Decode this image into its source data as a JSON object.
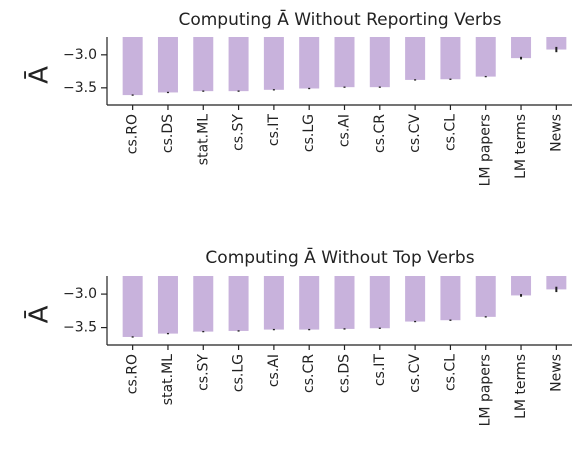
{
  "chart_data": [
    {
      "type": "bar",
      "title": "Computing Ā Without Reporting Verbs",
      "y_label": "Ā",
      "categories": [
        "cs.RO",
        "cs.DS",
        "stat.ML",
        "cs.SY",
        "cs.IT",
        "cs.LG",
        "cs.AI",
        "cs.CR",
        "cs.CV",
        "cs.CL",
        "LM papers",
        "LM terms",
        "News"
      ],
      "values": [
        -3.61,
        -3.57,
        -3.55,
        -3.55,
        -3.53,
        -3.51,
        -3.49,
        -3.49,
        -3.38,
        -3.37,
        -3.33,
        -3.05,
        -2.92
      ],
      "errors": [
        0.01,
        0.01,
        0.01,
        0.01,
        0.01,
        0.01,
        0.01,
        0.01,
        0.01,
        0.01,
        0.01,
        0.02,
        0.04
      ],
      "color": "#c8b2dc",
      "ylim": [
        -3.76,
        -2.73
      ],
      "yticks": [
        {
          "value": -3.5,
          "label": "−3.5"
        },
        {
          "value": -3.0,
          "label": "−3.0"
        }
      ]
    },
    {
      "type": "bar",
      "title": "Computing Ā Without Top Verbs",
      "y_label": "Ā",
      "categories": [
        "cs.RO",
        "stat.ML",
        "cs.SY",
        "cs.LG",
        "cs.AI",
        "cs.CR",
        "cs.DS",
        "cs.IT",
        "cs.CV",
        "cs.CL",
        "LM papers",
        "LM terms",
        "News"
      ],
      "values": [
        -3.64,
        -3.59,
        -3.56,
        -3.55,
        -3.53,
        -3.53,
        -3.52,
        -3.51,
        -3.41,
        -3.39,
        -3.34,
        -3.02,
        -2.93
      ],
      "errors": [
        0.01,
        0.01,
        0.01,
        0.01,
        0.01,
        0.01,
        0.01,
        0.01,
        0.01,
        0.01,
        0.01,
        0.02,
        0.04
      ],
      "color": "#c8b2dc",
      "ylim": [
        -3.76,
        -2.73
      ],
      "yticks": [
        {
          "value": -3.5,
          "label": "−3.5"
        },
        {
          "value": -3.0,
          "label": "−3.0"
        }
      ]
    }
  ]
}
